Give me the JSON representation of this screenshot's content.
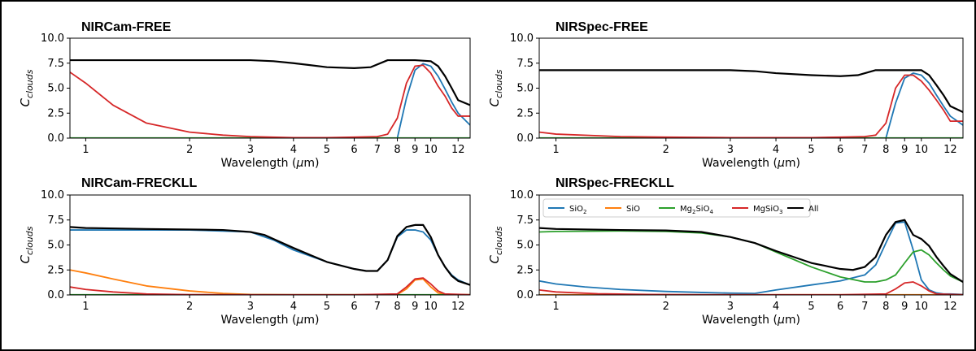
{
  "colors": {
    "SiO2": "#1f77b4",
    "SiO": "#ff7f0e",
    "Mg2SiO4": "#2ca02c",
    "MgSiO3": "#d62728",
    "All": "#000000"
  },
  "chart_data": [
    {
      "type": "line",
      "title": "NIRCam-FREE",
      "xlabel": "Wavelength (μm)",
      "ylabel": "C_clouds",
      "xscale": "log",
      "xlim": [
        0.9,
        13
      ],
      "ylim": [
        0,
        10
      ],
      "xticks": [
        "1",
        "2",
        "3",
        "4",
        "5",
        "6",
        "7",
        "8",
        "9",
        "10",
        "12"
      ],
      "yticks": [
        "0.0",
        "2.5",
        "5.0",
        "7.5",
        "10.0"
      ],
      "legend": null,
      "series": [
        {
          "key": "SiO2",
          "x": [
            0.9,
            8.0,
            8.5,
            9.0,
            9.5,
            10.0,
            10.5,
            11.0,
            11.5,
            12.0,
            13.0
          ],
          "y": [
            0,
            0,
            4.0,
            6.8,
            7.45,
            7.2,
            6.2,
            4.9,
            3.6,
            2.5,
            1.3
          ]
        },
        {
          "key": "Mg2SiO4",
          "x": [
            0.9,
            13.0
          ],
          "y": [
            0.02,
            0.02
          ]
        },
        {
          "key": "MgSiO3",
          "x": [
            0.9,
            1.0,
            1.2,
            1.5,
            2.0,
            2.5,
            3.0,
            4.0,
            5.0,
            6.0,
            7.0,
            7.5,
            8.0,
            8.5,
            9.0,
            9.5,
            10.0,
            10.5,
            11.0,
            11.5,
            12.0,
            13.0
          ],
          "y": [
            6.6,
            5.5,
            3.3,
            1.5,
            0.6,
            0.3,
            0.15,
            0.05,
            0.05,
            0.1,
            0.15,
            0.4,
            2.0,
            5.5,
            7.2,
            7.3,
            6.5,
            5.2,
            4.2,
            3.0,
            2.2,
            2.2
          ]
        },
        {
          "key": "All",
          "x": [
            0.9,
            3.0,
            3.5,
            4.0,
            5.0,
            6.0,
            6.7,
            7.5,
            9.0,
            10.0,
            10.5,
            11.0,
            11.5,
            12.0,
            13.0
          ],
          "y": [
            7.8,
            7.8,
            7.7,
            7.5,
            7.1,
            7.0,
            7.1,
            7.8,
            7.8,
            7.7,
            7.2,
            6.2,
            5.0,
            3.8,
            3.3
          ]
        }
      ]
    },
    {
      "type": "line",
      "title": "NIRSpec-FREE",
      "xlabel": "Wavelength (μm)",
      "ylabel": "C_clouds",
      "xscale": "log",
      "xlim": [
        0.9,
        13
      ],
      "ylim": [
        0,
        10
      ],
      "xticks": [
        "1",
        "2",
        "3",
        "4",
        "5",
        "6",
        "7",
        "8",
        "9",
        "10",
        "12"
      ],
      "yticks": [
        "0.0",
        "2.5",
        "5.0",
        "7.5",
        "10.0"
      ],
      "legend": null,
      "series": [
        {
          "key": "SiO2",
          "x": [
            0.9,
            8.0,
            8.5,
            9.0,
            9.5,
            10.0,
            10.5,
            11.0,
            11.5,
            12.0,
            13.0
          ],
          "y": [
            0,
            0,
            3.5,
            6.0,
            6.5,
            6.3,
            5.5,
            4.3,
            3.2,
            2.2,
            1.3
          ]
        },
        {
          "key": "Mg2SiO4",
          "x": [
            0.9,
            13.0
          ],
          "y": [
            0.02,
            0.02
          ]
        },
        {
          "key": "MgSiO3",
          "x": [
            0.9,
            1.0,
            1.5,
            2.0,
            3.0,
            4.0,
            5.0,
            6.0,
            7.0,
            7.5,
            8.0,
            8.5,
            9.0,
            9.5,
            10.0,
            10.5,
            11.0,
            11.5,
            12.0,
            13.0
          ],
          "y": [
            0.6,
            0.4,
            0.15,
            0.1,
            0.05,
            0.05,
            0.05,
            0.1,
            0.15,
            0.3,
            1.5,
            5.0,
            6.3,
            6.3,
            5.7,
            4.8,
            3.8,
            2.8,
            1.7,
            1.7
          ]
        },
        {
          "key": "All",
          "x": [
            0.9,
            3.0,
            3.5,
            4.0,
            5.0,
            6.0,
            6.7,
            7.5,
            9.0,
            10.0,
            10.5,
            11.0,
            11.5,
            12.0,
            13.0
          ],
          "y": [
            6.8,
            6.8,
            6.7,
            6.5,
            6.3,
            6.2,
            6.3,
            6.8,
            6.8,
            6.8,
            6.3,
            5.3,
            4.3,
            3.2,
            2.6
          ]
        }
      ]
    },
    {
      "type": "line",
      "title": "NIRCam-FRECKLL",
      "xlabel": "Wavelength (μm)",
      "ylabel": "C_clouds",
      "xscale": "log",
      "xlim": [
        0.9,
        13
      ],
      "ylim": [
        0,
        10
      ],
      "xticks": [
        "1",
        "2",
        "3",
        "4",
        "5",
        "6",
        "7",
        "8",
        "9",
        "10",
        "12"
      ],
      "yticks": [
        "0.0",
        "2.5",
        "5.0",
        "7.5",
        "10.0"
      ],
      "legend": null,
      "series": [
        {
          "key": "SiO2",
          "x": [
            0.9,
            1.0,
            2.0,
            3.0,
            3.5,
            4.0,
            5.0,
            6.0,
            6.5,
            7.0,
            7.5,
            8.0,
            8.5,
            9.0,
            9.5,
            10.0,
            10.5,
            11.0,
            11.5,
            12.0,
            13.0
          ],
          "y": [
            6.5,
            6.5,
            6.5,
            6.3,
            5.5,
            4.5,
            3.3,
            2.6,
            2.4,
            2.4,
            3.5,
            5.8,
            6.5,
            6.5,
            6.3,
            5.5,
            4.0,
            2.8,
            2.0,
            1.5,
            1.0
          ]
        },
        {
          "key": "SiO",
          "x": [
            0.9,
            1.0,
            1.2,
            1.5,
            2.0,
            2.5,
            3.0,
            4.0,
            6.0,
            8.0,
            8.5,
            9.0,
            9.5,
            10.0,
            10.5,
            11.0,
            13.0
          ],
          "y": [
            2.5,
            2.2,
            1.6,
            0.9,
            0.4,
            0.15,
            0.05,
            0.02,
            0.02,
            0.05,
            0.6,
            1.5,
            1.6,
            0.8,
            0.2,
            0.05,
            0.02
          ]
        },
        {
          "key": "Mg2SiO4",
          "x": [
            0.9,
            13.0
          ],
          "y": [
            0.02,
            0.02
          ]
        },
        {
          "key": "MgSiO3",
          "x": [
            0.9,
            1.0,
            1.2,
            1.5,
            2.0,
            3.0,
            4.0,
            6.0,
            8.0,
            8.5,
            9.0,
            9.5,
            10.0,
            10.5,
            11.0,
            13.0
          ],
          "y": [
            0.8,
            0.55,
            0.3,
            0.1,
            0.03,
            0.02,
            0.02,
            0.02,
            0.1,
            0.8,
            1.6,
            1.7,
            1.1,
            0.4,
            0.1,
            0.02
          ]
        },
        {
          "key": "All",
          "x": [
            0.9,
            1.0,
            1.5,
            2.0,
            2.5,
            3.0,
            3.3,
            3.5,
            4.0,
            5.0,
            6.0,
            6.5,
            7.0,
            7.5,
            8.0,
            8.5,
            9.0,
            9.5,
            10.0,
            10.5,
            11.0,
            11.5,
            12.0,
            13.0
          ],
          "y": [
            6.8,
            6.7,
            6.6,
            6.55,
            6.5,
            6.3,
            6.0,
            5.6,
            4.7,
            3.3,
            2.6,
            2.4,
            2.4,
            3.5,
            5.9,
            6.8,
            7.0,
            7.0,
            5.8,
            4.0,
            2.8,
            1.9,
            1.4,
            1.0
          ]
        }
      ]
    },
    {
      "type": "line",
      "title": "NIRSpec-FRECKLL",
      "xlabel": "Wavelength (μm)",
      "ylabel": "C_clouds",
      "xscale": "log",
      "xlim": [
        0.9,
        13
      ],
      "ylim": [
        0,
        10
      ],
      "xticks": [
        "1",
        "2",
        "3",
        "4",
        "5",
        "6",
        "7",
        "8",
        "9",
        "10",
        "12"
      ],
      "yticks": [
        "0.0",
        "2.5",
        "5.0",
        "7.5",
        "10.0"
      ],
      "legend": {
        "placement": "top",
        "entries": [
          {
            "key": "SiO2",
            "label": "SiO",
            "sub": "2"
          },
          {
            "key": "SiO",
            "label": "SiO",
            "sub": ""
          },
          {
            "key": "Mg2SiO4",
            "label": "Mg",
            "sub": "2",
            "label2": "SiO",
            "sub2": "4"
          },
          {
            "key": "MgSiO3",
            "label": "MgSiO",
            "sub": "3"
          },
          {
            "key": "All",
            "label": "All",
            "sub": ""
          }
        ]
      },
      "series": [
        {
          "key": "SiO2",
          "x": [
            0.9,
            1.0,
            1.2,
            1.5,
            2.0,
            2.5,
            3.0,
            3.5,
            4.0,
            5.0,
            6.0,
            7.0,
            7.5,
            8.0,
            8.5,
            9.0,
            9.5,
            10.0,
            10.5,
            11.0,
            11.5,
            12.0,
            13.0
          ],
          "y": [
            1.4,
            1.1,
            0.8,
            0.55,
            0.35,
            0.25,
            0.18,
            0.15,
            0.5,
            1.0,
            1.4,
            2.0,
            3.0,
            5.2,
            7.2,
            7.3,
            4.5,
            1.5,
            0.5,
            0.2,
            0.1,
            0.1,
            0.05
          ]
        },
        {
          "key": "SiO",
          "x": [
            0.9,
            13.0
          ],
          "y": [
            0.02,
            0.02
          ]
        },
        {
          "key": "Mg2SiO4",
          "x": [
            0.9,
            1.0,
            1.5,
            2.0,
            2.5,
            3.0,
            3.5,
            4.0,
            5.0,
            6.0,
            7.0,
            7.5,
            8.0,
            8.5,
            9.0,
            9.5,
            10.0,
            10.5,
            11.0,
            11.5,
            12.0,
            13.0
          ],
          "y": [
            6.3,
            6.35,
            6.4,
            6.35,
            6.2,
            5.8,
            5.2,
            4.3,
            2.8,
            1.8,
            1.3,
            1.3,
            1.5,
            2.0,
            3.2,
            4.3,
            4.5,
            4.0,
            3.2,
            2.5,
            1.9,
            1.3
          ]
        },
        {
          "key": "MgSiO3",
          "x": [
            0.9,
            1.0,
            1.3,
            1.8,
            2.5,
            4.0,
            6.0,
            8.0,
            8.5,
            9.0,
            9.5,
            10.0,
            10.5,
            11.0,
            13.0
          ],
          "y": [
            0.5,
            0.3,
            0.12,
            0.05,
            0.02,
            0.02,
            0.02,
            0.1,
            0.6,
            1.2,
            1.3,
            0.9,
            0.4,
            0.1,
            0.02
          ]
        },
        {
          "key": "All",
          "x": [
            0.9,
            1.0,
            1.5,
            2.0,
            2.5,
            3.0,
            3.5,
            4.0,
            5.0,
            6.0,
            6.5,
            7.0,
            7.5,
            8.0,
            8.5,
            9.0,
            9.5,
            10.0,
            10.5,
            11.0,
            11.5,
            12.0,
            13.0
          ],
          "y": [
            6.7,
            6.6,
            6.5,
            6.45,
            6.3,
            5.8,
            5.2,
            4.4,
            3.2,
            2.6,
            2.5,
            2.8,
            3.8,
            6.0,
            7.3,
            7.5,
            6.0,
            5.6,
            4.9,
            3.8,
            2.9,
            2.1,
            1.3
          ]
        }
      ]
    }
  ]
}
